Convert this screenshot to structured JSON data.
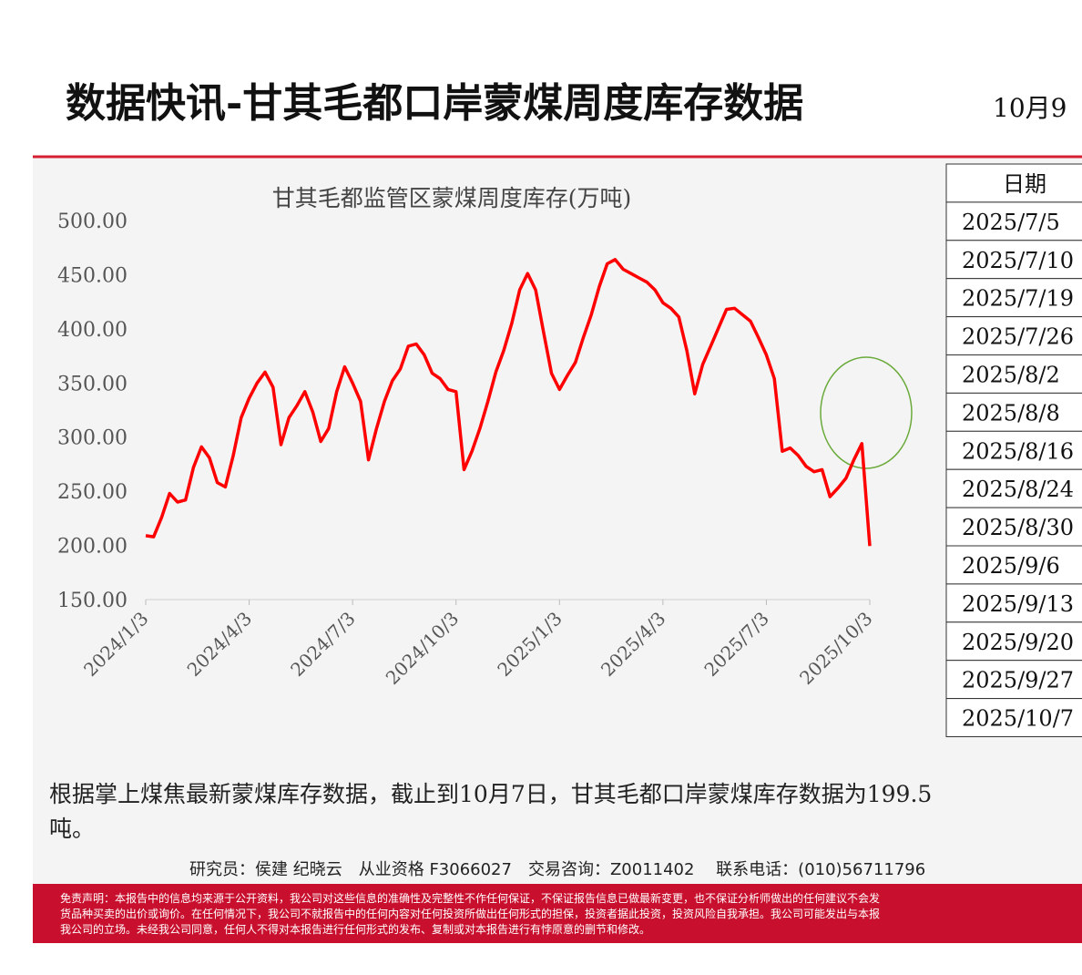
{
  "header": {
    "title": "数据快讯-甘其毛都口岸蒙煤周度库存数据",
    "date": "10月9"
  },
  "chart_data": {
    "type": "line",
    "title": "甘其毛都监管区蒙煤周度库存(万吨)",
    "color": "#ff0000",
    "categories": [
      "2024/1/3",
      null,
      null,
      null,
      null,
      null,
      null,
      null,
      null,
      null,
      null,
      null,
      null,
      "2024/4/3",
      null,
      null,
      null,
      null,
      null,
      null,
      null,
      null,
      null,
      null,
      null,
      null,
      "2024/7/3",
      null,
      null,
      null,
      null,
      null,
      null,
      null,
      null,
      null,
      null,
      null,
      null,
      "2024/10/3",
      null,
      null,
      null,
      null,
      null,
      null,
      null,
      null,
      null,
      null,
      null,
      null,
      "2025/1/3",
      null,
      null,
      null,
      null,
      null,
      null,
      null,
      null,
      null,
      null,
      null,
      null,
      "2025/4/3",
      null,
      null,
      null,
      null,
      null,
      null,
      null,
      null,
      null,
      null,
      null,
      null,
      "2025/7/3",
      null,
      null,
      null,
      null,
      null,
      null,
      null,
      null,
      null,
      null,
      null,
      null,
      "2025/10/3"
    ],
    "values": [
      209,
      208,
      226,
      248,
      240,
      242,
      272,
      291,
      281,
      258,
      254,
      283,
      318,
      336,
      350,
      360,
      346,
      293,
      318,
      329,
      342,
      323,
      296,
      308,
      342,
      365,
      350,
      333,
      279,
      308,
      333,
      352,
      363,
      384,
      386,
      376,
      359,
      354,
      344,
      342,
      270,
      287,
      308,
      333,
      360,
      380,
      405,
      436,
      451,
      436,
      397,
      359,
      344,
      357,
      369,
      392,
      413,
      439,
      460,
      464,
      455,
      451,
      447,
      443,
      436,
      424,
      419,
      411,
      380,
      340,
      367,
      384,
      401,
      418,
      419,
      413,
      407,
      392,
      376,
      354,
      287,
      290,
      283,
      273,
      268,
      270,
      245,
      253,
      262,
      279,
      294,
      199.5
    ],
    "ylim": [
      150,
      500
    ],
    "yticks": [
      {
        "value": 150,
        "label": "150.00"
      },
      {
        "value": 200,
        "label": "200.00"
      },
      {
        "value": 250,
        "label": "250.00"
      },
      {
        "value": 300,
        "label": "300.00"
      },
      {
        "value": 350,
        "label": "350.00"
      },
      {
        "value": 400,
        "label": "400.00"
      },
      {
        "value": 450,
        "label": "450.00"
      },
      {
        "value": 500,
        "label": "500.00"
      }
    ],
    "grid": false
  },
  "table": {
    "header": "日期",
    "rows": [
      "2025/7/5",
      "2025/7/10",
      "2025/7/19",
      "2025/7/26",
      "2025/8/2",
      "2025/8/8",
      "2025/8/16",
      "2025/8/24",
      "2025/8/30",
      "2025/9/6",
      "2025/9/13",
      "2025/9/20",
      "2025/9/27",
      "2025/10/7"
    ]
  },
  "body": {
    "lines": [
      "根据掌上煤焦最新蒙煤库存数据，截止到10月7日，甘其毛都口岸蒙煤库存数据为199.5",
      "吨。"
    ]
  },
  "footer": {
    "contact": "研究员：侯建 纪晓云　从业资格 F3066027　交易咨询：Z0011402　 联系电话：(010)56711796",
    "disclaimer": [
      "免责声明：本报告中的信息均来源于公开资料，我公司对这些信息的准确性及完整性不作任何保证，不保证报告信息已做最新变更，也不保证分析师做出的任何建议不会发",
      "货品种买卖的出价或询价。在任何情况下，我公司不就报告中的任何内容对任何投资所做出任何形式的担保，投资者据此投资，投资风险自我承担。我公司可能发出与本报",
      "我公司的立场。未经我公司同意，任何人不得对本报告进行任何形式的发布、复制或对本报告进行有悖原意的删节和修改。"
    ]
  }
}
